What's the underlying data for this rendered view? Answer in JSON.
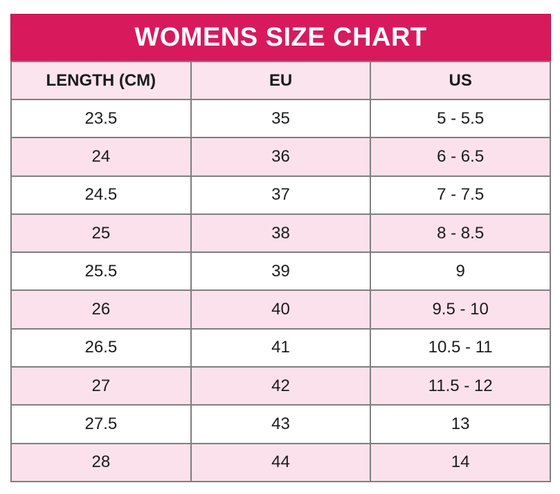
{
  "chart_data": {
    "type": "table",
    "title": "WOMENS SIZE CHART",
    "columns": [
      "LENGTH (CM)",
      "EU",
      "US"
    ],
    "rows": [
      [
        "23.5",
        "35",
        "5 - 5.5"
      ],
      [
        "24",
        "36",
        "6 - 6.5"
      ],
      [
        "24.5",
        "37",
        "7 - 7.5"
      ],
      [
        "25",
        "38",
        "8 - 8.5"
      ],
      [
        "25.5",
        "39",
        "9"
      ],
      [
        "26",
        "40",
        "9.5 - 10"
      ],
      [
        "26.5",
        "41",
        "10.5 - 11"
      ],
      [
        "27",
        "42",
        "11.5 - 12"
      ],
      [
        "27.5",
        "43",
        "13"
      ],
      [
        "28",
        "44",
        "14"
      ]
    ],
    "layout": {
      "striping": "alternate rows pink starting at second data row",
      "grid": "on",
      "column_alignment": "center"
    }
  },
  "colors": {
    "accent": "#D81A5C",
    "row_pink": "#FBE1EB",
    "header_pink": "#FBE4ED",
    "grid_border": "#7E7E7E",
    "title_text": "#FFFFFF",
    "body_text": "#1B1B1B"
  }
}
